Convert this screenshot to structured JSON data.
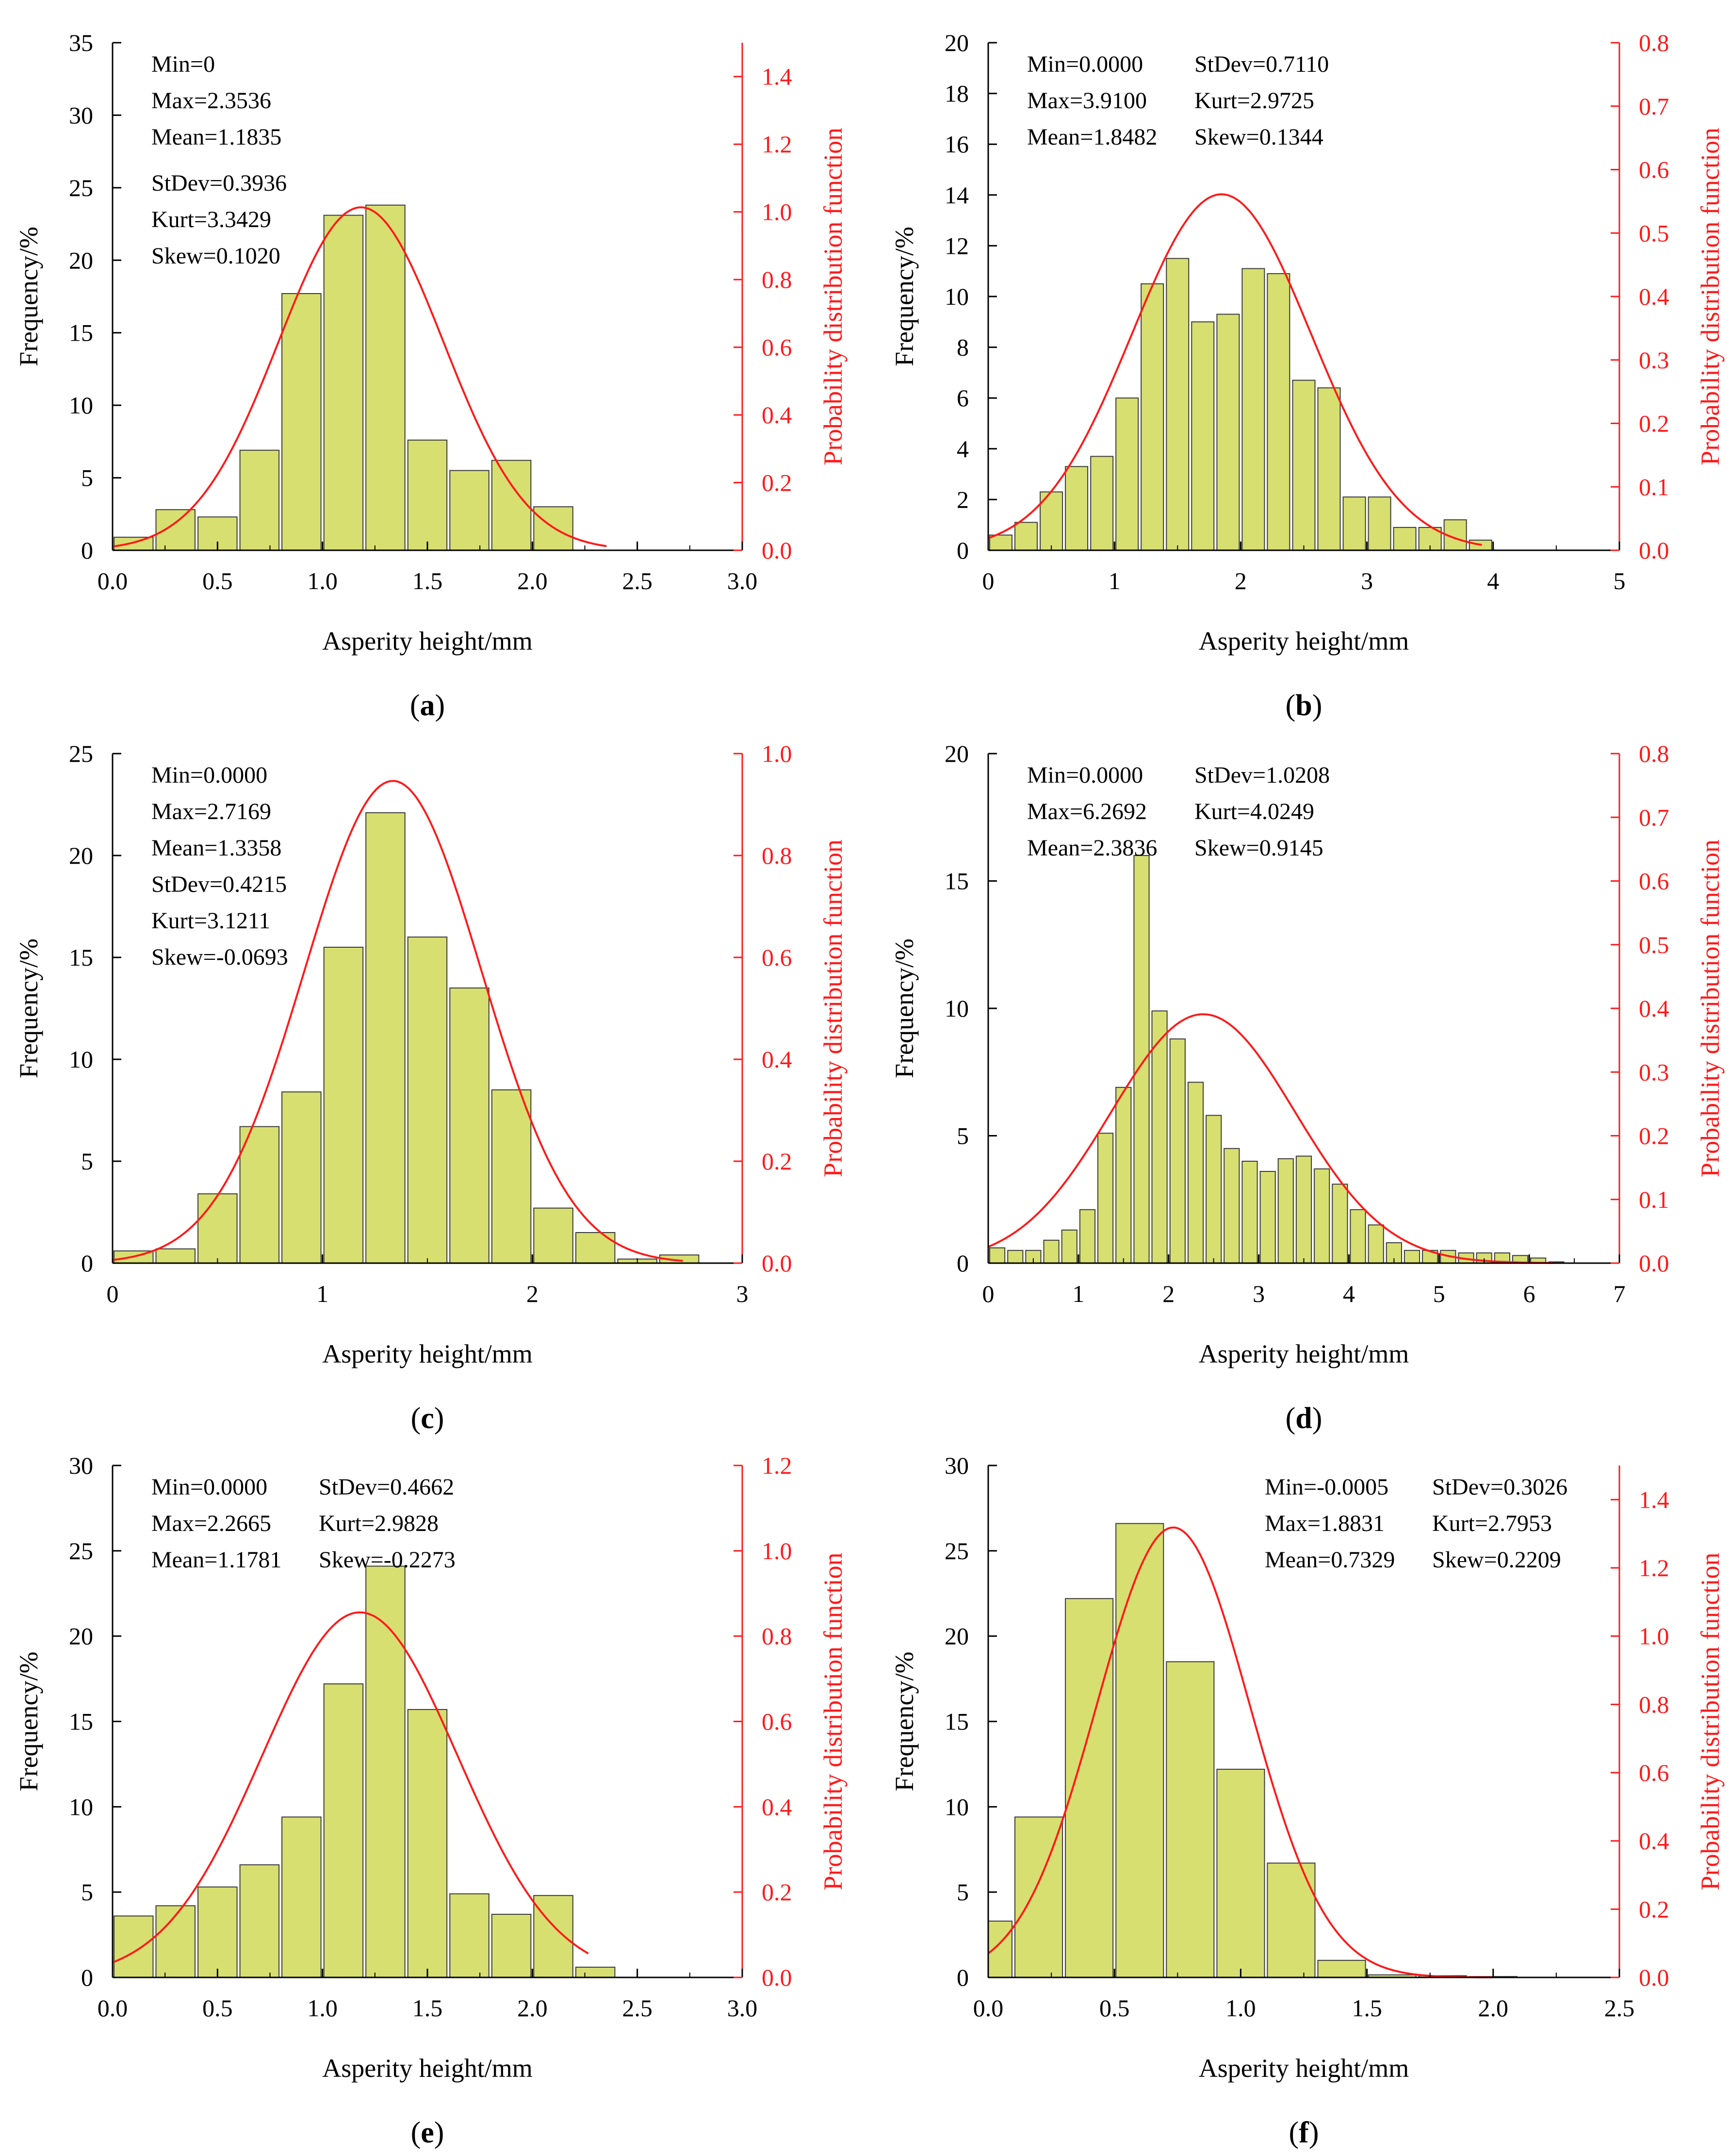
{
  "figure": {
    "colors": {
      "bar_fill": "#d7df71",
      "bar_stroke": "#3a3a3a",
      "curve": "#ff1a1a",
      "right_axis": "#ff1a1a",
      "axis": "#000000"
    },
    "xlabel": "Asperity height/mm",
    "ylabel": "Frequency/%",
    "y2label": "Probability distribution function"
  },
  "chart_data": [
    {
      "type": "bar",
      "panel_label": "a",
      "xlabel": "Asperity height/mm",
      "ylabel": "Frequency/%",
      "y2label": "Probability distribution function",
      "xlim": [
        0,
        3.0
      ],
      "ylim": [
        0,
        35
      ],
      "y2lim": [
        0,
        1.5
      ],
      "xticks": [
        "0.0",
        "0.5",
        "1.0",
        "1.5",
        "2.0",
        "2.5",
        "3.0"
      ],
      "xtick_values": [
        0,
        0.5,
        1.0,
        1.5,
        2.0,
        2.5,
        3.0
      ],
      "yticks": [
        "0",
        "5",
        "10",
        "15",
        "20",
        "25",
        "30",
        "35"
      ],
      "ytick_values": [
        0,
        5,
        10,
        15,
        20,
        25,
        30,
        35
      ],
      "y2ticks": [
        "0.0",
        "0.2",
        "0.4",
        "0.6",
        "0.8",
        "1.0",
        "1.2",
        "1.4"
      ],
      "y2tick_values": [
        0,
        0.2,
        0.4,
        0.6,
        0.8,
        1.0,
        1.2,
        1.4
      ],
      "bin_width": 0.2,
      "bars": [
        {
          "x": 0.1,
          "value": 0.9
        },
        {
          "x": 0.3,
          "value": 2.8
        },
        {
          "x": 0.5,
          "value": 2.3
        },
        {
          "x": 0.7,
          "value": 6.9
        },
        {
          "x": 0.9,
          "value": 17.7
        },
        {
          "x": 1.1,
          "value": 23.1
        },
        {
          "x": 1.3,
          "value": 23.8
        },
        {
          "x": 1.5,
          "value": 7.6
        },
        {
          "x": 1.7,
          "value": 5.5
        },
        {
          "x": 1.9,
          "value": 6.2
        },
        {
          "x": 2.1,
          "value": 3.0
        }
      ],
      "curve": {
        "mean": 1.1835,
        "sd": 0.3936,
        "x_range": [
          0,
          2.3536
        ]
      },
      "stats_layout": "column",
      "stats": [
        "Min=0",
        "Max=2.3536",
        "Mean=1.1835",
        "StDev=0.3936",
        "Kurt=3.3429",
        "Skew=0.1020"
      ]
    },
    {
      "type": "bar",
      "panel_label": "b",
      "xlabel": "Asperity height/mm",
      "ylabel": "Frequency/%",
      "y2label": "Probability distribution function",
      "xlim": [
        0,
        5
      ],
      "ylim": [
        0,
        20
      ],
      "y2lim": [
        0,
        0.8
      ],
      "xticks": [
        "0",
        "1",
        "2",
        "3",
        "4",
        "5"
      ],
      "xtick_values": [
        0,
        1,
        2,
        3,
        4,
        5
      ],
      "yticks": [
        "0",
        "2",
        "4",
        "6",
        "8",
        "10",
        "12",
        "14",
        "16",
        "18",
        "20"
      ],
      "ytick_values": [
        0,
        2,
        4,
        6,
        8,
        10,
        12,
        14,
        16,
        18,
        20
      ],
      "y2ticks": [
        "0.0",
        "0.1",
        "0.2",
        "0.3",
        "0.4",
        "0.5",
        "0.6",
        "0.7",
        "0.8"
      ],
      "y2tick_values": [
        0,
        0.1,
        0.2,
        0.3,
        0.4,
        0.5,
        0.6,
        0.7,
        0.8
      ],
      "bin_width": 0.2,
      "bars": [
        {
          "x": 0.1,
          "value": 0.6
        },
        {
          "x": 0.3,
          "value": 1.1
        },
        {
          "x": 0.5,
          "value": 2.3
        },
        {
          "x": 0.7,
          "value": 3.3
        },
        {
          "x": 0.9,
          "value": 3.7
        },
        {
          "x": 1.1,
          "value": 6.0
        },
        {
          "x": 1.3,
          "value": 10.5
        },
        {
          "x": 1.5,
          "value": 11.5
        },
        {
          "x": 1.7,
          "value": 9.0
        },
        {
          "x": 1.9,
          "value": 9.3
        },
        {
          "x": 2.1,
          "value": 11.1
        },
        {
          "x": 2.3,
          "value": 10.9
        },
        {
          "x": 2.5,
          "value": 6.7
        },
        {
          "x": 2.7,
          "value": 6.4
        },
        {
          "x": 2.9,
          "value": 2.1
        },
        {
          "x": 3.1,
          "value": 2.1
        },
        {
          "x": 3.3,
          "value": 0.9
        },
        {
          "x": 3.5,
          "value": 0.9
        },
        {
          "x": 3.7,
          "value": 1.2
        },
        {
          "x": 3.9,
          "value": 0.4
        }
      ],
      "curve": {
        "mean": 1.8482,
        "sd": 0.711,
        "x_range": [
          0,
          3.91
        ]
      },
      "stats_layout": "grid",
      "stats": [
        "Min=0.0000",
        "StDev=0.7110",
        "Max=3.9100",
        "Kurt=2.9725",
        "Mean=1.8482",
        "Skew=0.1344"
      ]
    },
    {
      "type": "bar",
      "panel_label": "c",
      "xlabel": "Asperity height/mm",
      "ylabel": "Frequency/%",
      "y2label": "Probability distribution function",
      "xlim": [
        0,
        3
      ],
      "ylim": [
        0,
        25
      ],
      "y2lim": [
        0,
        1.0
      ],
      "xticks": [
        "0",
        "1",
        "2",
        "3"
      ],
      "xtick_values": [
        0,
        1,
        2,
        3
      ],
      "yticks": [
        "0",
        "5",
        "10",
        "15",
        "20",
        "25"
      ],
      "ytick_values": [
        0,
        5,
        10,
        15,
        20,
        25
      ],
      "y2ticks": [
        "0.0",
        "0.2",
        "0.4",
        "0.6",
        "0.8",
        "1.0"
      ],
      "y2tick_values": [
        0,
        0.2,
        0.4,
        0.6,
        0.8,
        1.0
      ],
      "bin_width": 0.2,
      "bars": [
        {
          "x": 0.1,
          "value": 0.6
        },
        {
          "x": 0.3,
          "value": 0.7
        },
        {
          "x": 0.5,
          "value": 3.4
        },
        {
          "x": 0.7,
          "value": 6.7
        },
        {
          "x": 0.9,
          "value": 8.4
        },
        {
          "x": 1.1,
          "value": 15.5
        },
        {
          "x": 1.3,
          "value": 22.1
        },
        {
          "x": 1.5,
          "value": 16.0
        },
        {
          "x": 1.7,
          "value": 13.5
        },
        {
          "x": 1.9,
          "value": 8.5
        },
        {
          "x": 2.1,
          "value": 2.7
        },
        {
          "x": 2.3,
          "value": 1.5
        },
        {
          "x": 2.5,
          "value": 0.2
        },
        {
          "x": 2.7,
          "value": 0.4
        }
      ],
      "curve": {
        "mean": 1.3358,
        "sd": 0.4215,
        "x_range": [
          0,
          2.7169
        ]
      },
      "stats_layout": "column",
      "stats": [
        "Min=0.0000",
        "Max=2.7169",
        "Mean=1.3358",
        "StDev=0.4215",
        "Kurt=3.1211",
        "Skew=-0.0693"
      ]
    },
    {
      "type": "bar",
      "panel_label": "d",
      "xlabel": "Asperity height/mm",
      "ylabel": "Frequency/%",
      "y2label": "Probability distribution function",
      "xlim": [
        0,
        7
      ],
      "ylim": [
        0,
        20
      ],
      "y2lim": [
        0,
        0.8
      ],
      "xticks": [
        "0",
        "1",
        "2",
        "3",
        "4",
        "5",
        "6",
        "7"
      ],
      "xtick_values": [
        0,
        1,
        2,
        3,
        4,
        5,
        6,
        7
      ],
      "yticks": [
        "0",
        "5",
        "10",
        "15",
        "20"
      ],
      "ytick_values": [
        0,
        5,
        10,
        15,
        20
      ],
      "y2ticks": [
        "0.0",
        "0.1",
        "0.2",
        "0.3",
        "0.4",
        "0.5",
        "0.6",
        "0.7",
        "0.8"
      ],
      "y2tick_values": [
        0,
        0.1,
        0.2,
        0.3,
        0.4,
        0.5,
        0.6,
        0.7,
        0.8
      ],
      "bin_width": 0.2,
      "bars": [
        {
          "x": 0.1,
          "value": 0.6
        },
        {
          "x": 0.3,
          "value": 0.5
        },
        {
          "x": 0.5,
          "value": 0.5
        },
        {
          "x": 0.7,
          "value": 0.9
        },
        {
          "x": 0.9,
          "value": 1.3
        },
        {
          "x": 1.1,
          "value": 2.1
        },
        {
          "x": 1.3,
          "value": 5.1
        },
        {
          "x": 1.5,
          "value": 6.9
        },
        {
          "x": 1.7,
          "value": 16.0
        },
        {
          "x": 1.9,
          "value": 9.9
        },
        {
          "x": 2.1,
          "value": 8.8
        },
        {
          "x": 2.3,
          "value": 7.1
        },
        {
          "x": 2.5,
          "value": 5.8
        },
        {
          "x": 2.7,
          "value": 4.5
        },
        {
          "x": 2.9,
          "value": 4.0
        },
        {
          "x": 3.1,
          "value": 3.6
        },
        {
          "x": 3.3,
          "value": 4.1
        },
        {
          "x": 3.5,
          "value": 4.2
        },
        {
          "x": 3.7,
          "value": 3.7
        },
        {
          "x": 3.9,
          "value": 3.1
        },
        {
          "x": 4.1,
          "value": 2.1
        },
        {
          "x": 4.3,
          "value": 1.5
        },
        {
          "x": 4.5,
          "value": 0.8
        },
        {
          "x": 4.7,
          "value": 0.5
        },
        {
          "x": 4.9,
          "value": 0.5
        },
        {
          "x": 5.1,
          "value": 0.5
        },
        {
          "x": 5.3,
          "value": 0.4
        },
        {
          "x": 5.5,
          "value": 0.4
        },
        {
          "x": 5.7,
          "value": 0.4
        },
        {
          "x": 5.9,
          "value": 0.3
        },
        {
          "x": 6.1,
          "value": 0.2
        },
        {
          "x": 6.3,
          "value": 0.05
        }
      ],
      "curve": {
        "mean": 2.3836,
        "sd": 1.0208,
        "x_range": [
          0,
          6.2692
        ]
      },
      "stats_layout": "grid",
      "stats": [
        "Min=0.0000",
        "StDev=1.0208",
        "Max=6.2692",
        "Kurt=4.0249",
        "Mean=2.3836",
        "Skew=0.9145"
      ]
    },
    {
      "type": "bar",
      "panel_label": "e",
      "xlabel": "Asperity height/mm",
      "ylabel": "Frequency/%",
      "y2label": "Probability distribution function",
      "xlim": [
        0,
        3.0
      ],
      "ylim": [
        0,
        30
      ],
      "y2lim": [
        0,
        1.2
      ],
      "xticks": [
        "0.0",
        "0.5",
        "1.0",
        "1.5",
        "2.0",
        "2.5",
        "3.0"
      ],
      "xtick_values": [
        0,
        0.5,
        1.0,
        1.5,
        2.0,
        2.5,
        3.0
      ],
      "yticks": [
        "0",
        "5",
        "10",
        "15",
        "20",
        "25",
        "30"
      ],
      "ytick_values": [
        0,
        5,
        10,
        15,
        20,
        25,
        30
      ],
      "y2ticks": [
        "0.0",
        "0.2",
        "0.4",
        "0.6",
        "0.8",
        "1.0",
        "1.2"
      ],
      "y2tick_values": [
        0,
        0.2,
        0.4,
        0.6,
        0.8,
        1.0,
        1.2
      ],
      "bin_width": 0.2,
      "bars": [
        {
          "x": 0.1,
          "value": 3.6
        },
        {
          "x": 0.3,
          "value": 4.2
        },
        {
          "x": 0.5,
          "value": 5.3
        },
        {
          "x": 0.7,
          "value": 6.6
        },
        {
          "x": 0.9,
          "value": 9.4
        },
        {
          "x": 1.1,
          "value": 17.2
        },
        {
          "x": 1.3,
          "value": 24.1
        },
        {
          "x": 1.5,
          "value": 15.7
        },
        {
          "x": 1.7,
          "value": 4.9
        },
        {
          "x": 1.9,
          "value": 3.7
        },
        {
          "x": 2.1,
          "value": 4.8
        },
        {
          "x": 2.3,
          "value": 0.6
        }
      ],
      "curve": {
        "mean": 1.1781,
        "sd": 0.4662,
        "x_range": [
          0,
          2.2665
        ]
      },
      "stats_layout": "grid",
      "stats": [
        "Min=0.0000",
        "StDev=0.4662",
        "Max=2.2665",
        "Kurt=2.9828",
        "Mean=1.1781",
        "Skew=-0.2273"
      ]
    },
    {
      "type": "bar",
      "panel_label": "f",
      "xlabel": "Asperity height/mm",
      "ylabel": "Frequency/%",
      "y2label": "Probability distribution function",
      "xlim": [
        0,
        2.5
      ],
      "ylim": [
        0,
        30
      ],
      "y2lim": [
        0,
        1.5
      ],
      "xticks": [
        "0.0",
        "0.5",
        "1.0",
        "1.5",
        "2.0",
        "2.5"
      ],
      "xtick_values": [
        0,
        0.5,
        1.0,
        1.5,
        2.0,
        2.5
      ],
      "yticks": [
        "0",
        "5",
        "10",
        "15",
        "20",
        "25",
        "30"
      ],
      "ytick_values": [
        0,
        5,
        10,
        15,
        20,
        25,
        30
      ],
      "y2ticks": [
        "0.0",
        "0.2",
        "0.4",
        "0.6",
        "0.8",
        "1.0",
        "1.2",
        "1.4"
      ],
      "y2tick_values": [
        0,
        0.2,
        0.4,
        0.6,
        0.8,
        1.0,
        1.2,
        1.4
      ],
      "bin_width": 0.2,
      "bars": [
        {
          "x": 0.0,
          "value": 3.3
        },
        {
          "x": 0.2,
          "value": 9.4
        },
        {
          "x": 0.4,
          "value": 22.2
        },
        {
          "x": 0.6,
          "value": 26.6
        },
        {
          "x": 0.8,
          "value": 18.5
        },
        {
          "x": 1.0,
          "value": 12.2
        },
        {
          "x": 1.2,
          "value": 6.7
        },
        {
          "x": 1.4,
          "value": 1.0
        },
        {
          "x": 1.6,
          "value": 0.15
        },
        {
          "x": 1.8,
          "value": 0.1
        },
        {
          "x": 2.0,
          "value": 0.05
        }
      ],
      "curve": {
        "mean": 0.7329,
        "sd": 0.3026,
        "x_range": [
          0,
          2.0
        ]
      },
      "stats_layout": "grid",
      "stats": [
        "Min=-0.0005",
        "StDev=0.3026",
        "Max=1.8831",
        "Kurt=2.7953",
        "Mean=0.7329",
        "Skew=0.2209"
      ]
    }
  ]
}
